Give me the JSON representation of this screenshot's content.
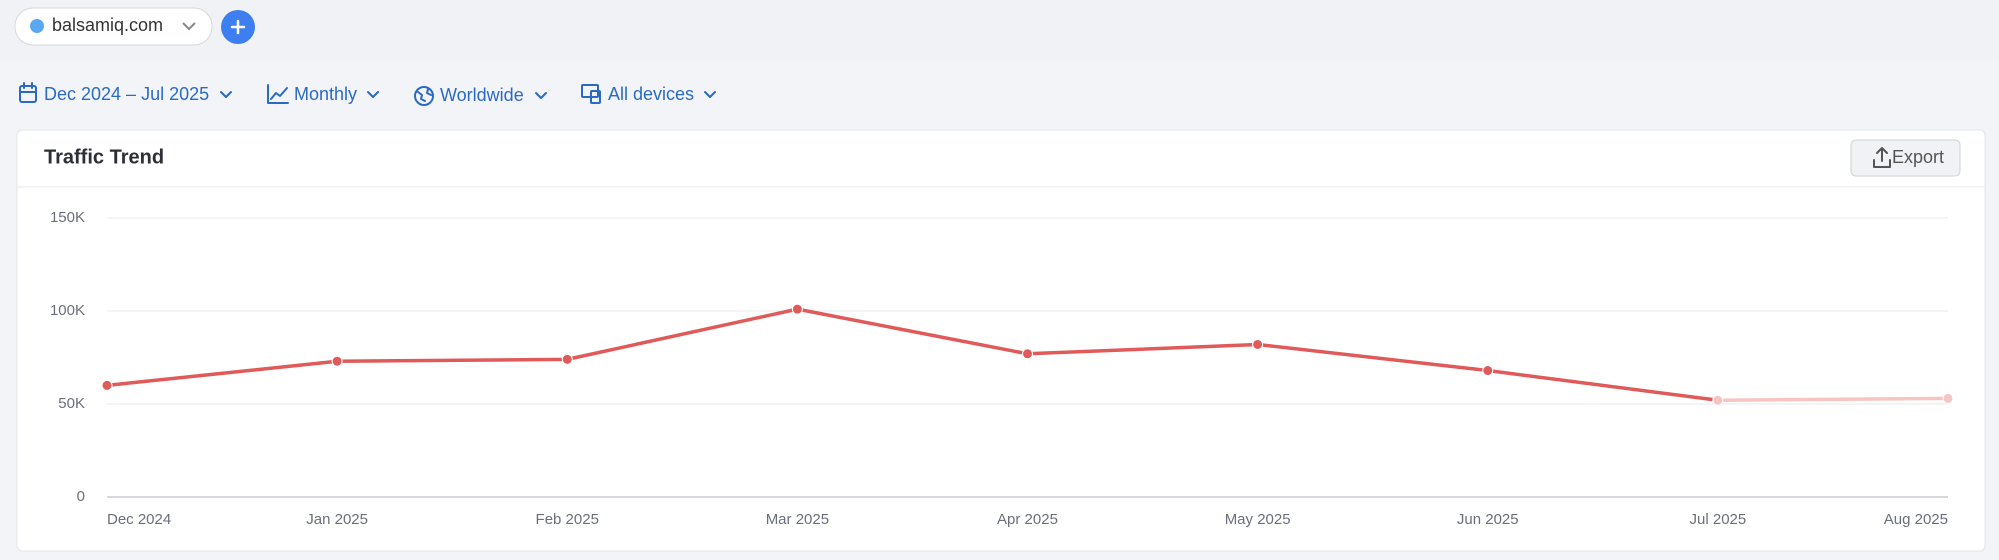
{
  "header": {
    "domain": "balsamiq.com"
  },
  "filters": [
    "Dec 2024 – Jul 2025",
    "Monthly",
    "Worldwide",
    "All devices"
  ],
  "card": {
    "title": "Traffic Trend",
    "export": "Export"
  },
  "chart_data": {
    "type": "line",
    "categories": [
      "Dec 2024",
      "Jan 2025",
      "Feb 2025",
      "Mar 2025",
      "Apr 2025",
      "May 2025",
      "Jun 2025",
      "Jul 2025",
      "Aug 2025"
    ],
    "series": [
      {
        "color": "#e05a5a",
        "values": [
          60000,
          73000,
          74000,
          101000,
          77000,
          82000,
          68000,
          52000,
          null
        ]
      },
      {
        "color": "#f7c4c4",
        "values": [
          null,
          null,
          null,
          null,
          null,
          null,
          null,
          52000,
          53000
        ]
      }
    ],
    "ylim": [
      0,
      150000
    ],
    "yticks": [
      0,
      {
        "value": 50000,
        "label": "50K"
      },
      {
        "value": 100000,
        "label": "100K"
      },
      {
        "value": 150000,
        "label": "150K"
      }
    ],
    "grid": true
  }
}
